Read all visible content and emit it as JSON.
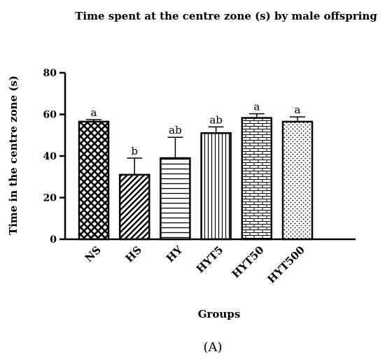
{
  "chart_data": {
    "type": "bar",
    "title": "Time spent at the centre zone (s) by male offspring",
    "xlabel": "Groups",
    "ylabel": "Time in the centre zone (s)",
    "ylim": [
      0,
      80
    ],
    "yticks": [
      0,
      20,
      40,
      60,
      80
    ],
    "categories": [
      "NS",
      "HS",
      "HY",
      "HYT5",
      "HYT50",
      "HYT500"
    ],
    "values": [
      56.5,
      31,
      39,
      51,
      58.3,
      56.5
    ],
    "errors": [
      1,
      8,
      10,
      3,
      2,
      2.3
    ],
    "significance": [
      "a",
      "b",
      "ab",
      "ab",
      "a",
      "a"
    ],
    "patterns": [
      "crosshatch",
      "diagonal",
      "horizontal",
      "vertical",
      "brick",
      "dots"
    ],
    "bar_fill": "#ffffff",
    "bar_stroke": "#000000",
    "grid": false,
    "legend": "none",
    "panel_label": "(A)"
  }
}
